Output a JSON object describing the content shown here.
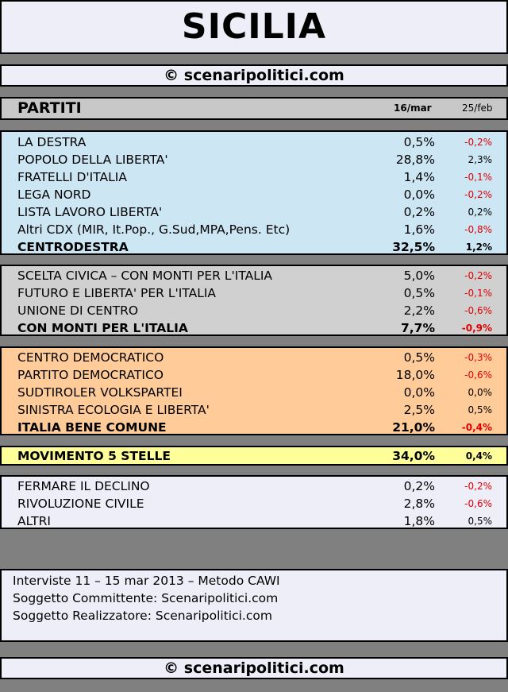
{
  "title": "SICILIA",
  "site": "© scenaripolitici.com",
  "header": {
    "label": "PARTITI",
    "date_current": "16/mar",
    "date_previous": "25/feb"
  },
  "centrodestra": [
    {
      "name": "LA DESTRA",
      "value": "0,5%",
      "delta": "-0,2%"
    },
    {
      "name": "POPOLO DELLA LIBERTA'",
      "value": "28,8%",
      "delta": "2,3%"
    },
    {
      "name": "FRATELLI D'ITALIA",
      "value": "1,4%",
      "delta": "-0,1%"
    },
    {
      "name": "LEGA NORD",
      "value": "0,0%",
      "delta": "-0,2%"
    },
    {
      "name": "LISTA LAVORO LIBERTA'",
      "value": "0,2%",
      "delta": "0,2%"
    },
    {
      "name": "Altri CDX (MIR, It.Pop., G.Sud,MPA,Pens. Etc)",
      "value": "1,6%",
      "delta": "-0,8%"
    },
    {
      "name": "CENTRODESTRA",
      "value": "32,5%",
      "delta": "1,2%"
    }
  ],
  "monti": [
    {
      "name": "SCELTA CIVICA – CON MONTI PER L'ITALIA",
      "value": "5,0%",
      "delta": "-0,2%"
    },
    {
      "name": "FUTURO E LIBERTA' PER L'ITALIA",
      "value": "0,5%",
      "delta": "-0,1%"
    },
    {
      "name": "UNIONE DI CENTRO",
      "value": "2,2%",
      "delta": "-0,6%"
    },
    {
      "name": "CON MONTI PER L'ITALIA",
      "value": "7,7%",
      "delta": "-0,9%"
    }
  ],
  "ibc": [
    {
      "name": "CENTRO DEMOCRATICO",
      "value": "0,5%",
      "delta": "-0,3%"
    },
    {
      "name": "PARTITO DEMOCRATICO",
      "value": "18,0%",
      "delta": "-0,6%"
    },
    {
      "name": "SUDTIROLER VOLKSPARTEI",
      "value": "0,0%",
      "delta": "0,0%"
    },
    {
      "name": "SINISTRA ECOLOGIA E LIBERTA'",
      "value": "2,5%",
      "delta": "0,5%"
    },
    {
      "name": "ITALIA BENE COMUNE",
      "value": "21,0%",
      "delta": "-0,4%"
    }
  ],
  "m5s": {
    "name": "MOVIMENTO 5 STELLE",
    "value": "34,0%",
    "delta": "0,4%"
  },
  "others": [
    {
      "name": "FERMARE IL DECLINO",
      "value": "0,2%",
      "delta": "-0,2%"
    },
    {
      "name": "RIVOLUZIONE CIVILE",
      "value": "2,8%",
      "delta": "-0,6%"
    },
    {
      "name": "ALTRI",
      "value": "1,8%",
      "delta": "0,5%"
    }
  ],
  "info": {
    "line1": "Interviste 11 – 15 mar 2013 – Metodo CAWI",
    "line2": "Soggetto Committente: Scenaripolitici.com",
    "line3": "Soggetto Realizzatore: Scenaripolitici.com"
  },
  "colors": {
    "centrodestra_bg": "#cce6f4",
    "monti_bg": "#d0d0d0",
    "ibc_bg": "#ffcc99",
    "m5s_bg": "#ffff99",
    "others_bg": "#eeeef8",
    "negative": "#e00000"
  }
}
